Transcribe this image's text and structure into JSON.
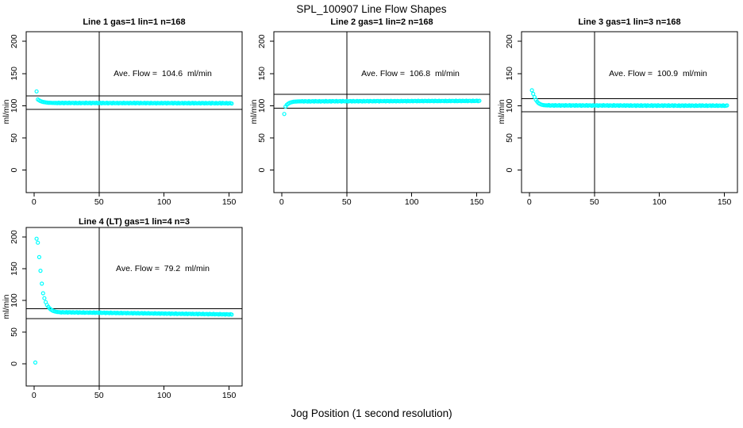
{
  "figure": {
    "title": "SPL_100907  Line Flow Shapes",
    "x_axis_label": "Jog Position (1 second resolution)",
    "y_axis_label": "ml/min",
    "colors": {
      "points": "#00FFFF",
      "axis": "#000000",
      "background": "#FFFFFF"
    }
  },
  "chart_data": {
    "type": "scatter",
    "title": "SPL_100907  Line Flow Shapes",
    "xlabel": "Jog Position (1 second resolution)",
    "ylabel": "ml/min",
    "xlim": [
      -6,
      160
    ],
    "ylim": [
      -35,
      215
    ],
    "xticks": [
      0,
      50,
      100,
      150
    ],
    "yticks": [
      0,
      50,
      100,
      150,
      200
    ],
    "grid": false,
    "marker": "open-circle",
    "panels": [
      {
        "title": "Line 1 gas=1 lin=1 n=168",
        "ave_flow": 104.6,
        "ave_flow_label": "Ave. Flow =  104.6  ml/min",
        "ref_lines": {
          "upper": 115.1,
          "lower": 94.1,
          "vertical_x": 50
        },
        "head_points": [
          [
            2,
            122.3
          ],
          [
            3,
            109.7
          ],
          [
            4,
            108.3
          ],
          [
            5,
            107.3
          ],
          [
            6,
            106.5
          ],
          [
            7,
            105.9
          ],
          [
            8,
            105.5
          ],
          [
            9,
            105.1
          ],
          [
            10,
            104.9
          ],
          [
            11,
            104.7
          ],
          [
            12,
            104.6
          ],
          [
            13,
            104.5
          ],
          [
            14,
            104.4
          ],
          [
            15,
            104.4
          ],
          [
            16,
            104.3
          ],
          [
            17,
            104.3
          ]
        ],
        "tail": {
          "x_start": 18,
          "x_end": 152,
          "y_start": 104.3,
          "y_end": 103.9,
          "jitter": 0.5
        }
      },
      {
        "title": "Line 2 gas=1 lin=2 n=168",
        "ave_flow": 106.8,
        "ave_flow_label": "Ave. Flow =  106.8  ml/min",
        "ref_lines": {
          "upper": 117.5,
          "lower": 96.1,
          "vertical_x": 50
        },
        "head_points": [
          [
            2,
            87.2
          ],
          [
            3,
            98.8
          ],
          [
            4,
            101.6
          ],
          [
            5,
            103.1
          ],
          [
            6,
            104.3
          ],
          [
            7,
            105.1
          ],
          [
            8,
            105.7
          ],
          [
            9,
            106.1
          ],
          [
            10,
            106.4
          ],
          [
            11,
            106.5
          ],
          [
            12,
            106.6
          ],
          [
            13,
            106.7
          ],
          [
            14,
            106.7
          ],
          [
            15,
            106.8
          ]
        ],
        "tail": {
          "x_start": 16,
          "x_end": 152,
          "y_start": 106.8,
          "y_end": 107.5,
          "jitter": 0.45
        }
      },
      {
        "title": "Line 3 gas=1 lin=3 n=168",
        "ave_flow": 100.9,
        "ave_flow_label": "Ave. Flow =  100.9  ml/min",
        "ref_lines": {
          "upper": 111.0,
          "lower": 90.8,
          "vertical_x": 50
        },
        "head_points": [
          [
            2,
            124.0
          ],
          [
            3,
            118.5
          ],
          [
            4,
            113.4
          ],
          [
            5,
            109.2
          ],
          [
            6,
            106.3
          ],
          [
            7,
            104.2
          ],
          [
            8,
            102.9
          ],
          [
            9,
            101.9
          ],
          [
            10,
            101.3
          ],
          [
            11,
            100.9
          ],
          [
            12,
            100.7
          ],
          [
            13,
            100.6
          ],
          [
            14,
            100.5
          ]
        ],
        "tail": {
          "x_start": 15,
          "x_end": 152,
          "y_start": 100.5,
          "y_end": 100.1,
          "jitter": 0.55
        }
      },
      {
        "title": "Line 4 (LT) gas=1 lin=4 n=3",
        "ave_flow": 79.2,
        "ave_flow_label": "Ave. Flow =  79.2  ml/min",
        "ref_lines": {
          "upper": 87.1,
          "lower": 71.3,
          "vertical_x": 50
        },
        "head_points": [
          [
            1,
            2.0
          ],
          [
            2,
            197.2
          ],
          [
            3,
            191.0
          ],
          [
            4,
            168.3
          ],
          [
            5,
            146.8
          ],
          [
            6,
            126.4
          ],
          [
            7,
            111.2
          ],
          [
            8,
            103.5
          ],
          [
            9,
            97.2
          ],
          [
            10,
            92.9
          ],
          [
            11,
            89.8
          ],
          [
            12,
            87.4
          ],
          [
            13,
            85.6
          ],
          [
            14,
            84.3
          ],
          [
            15,
            83.3
          ],
          [
            16,
            82.6
          ],
          [
            17,
            82.1
          ],
          [
            18,
            81.8
          ],
          [
            19,
            81.6
          ],
          [
            20,
            81.4
          ]
        ],
        "tail": {
          "x_start": 21,
          "x_end": 152,
          "y_start": 81.3,
          "y_end": 77.9,
          "jitter": 0.45
        }
      }
    ]
  }
}
